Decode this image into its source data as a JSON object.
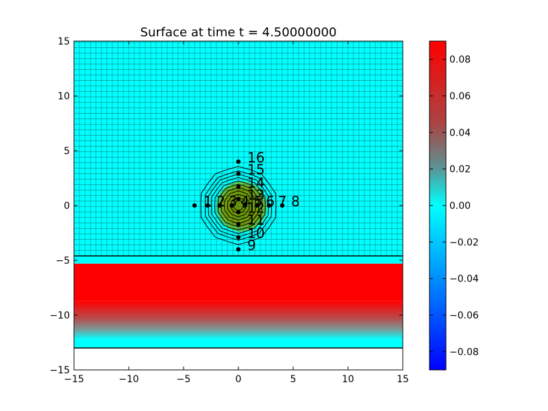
{
  "chart_data": {
    "type": "heatmap",
    "title": "Surface at time t =     4.50000000",
    "xlim": [
      -15,
      15
    ],
    "ylim": [
      -15,
      15
    ],
    "x_ticks": [
      "−15",
      "−10",
      "−5",
      "0",
      "5",
      "10",
      "15"
    ],
    "y_ticks": [
      "15",
      "10",
      "5",
      "0",
      "−5",
      "−10",
      "−15"
    ],
    "x_tick_values": [
      -15,
      -10,
      -5,
      0,
      5,
      10,
      15
    ],
    "y_tick_values": [
      15,
      10,
      5,
      0,
      -5,
      -10,
      -15
    ],
    "grid": true,
    "grid_step": 0.5,
    "colorbar": {
      "ticks": [
        "0.08",
        "0.06",
        "0.04",
        "0.02",
        "0.00",
        "−0.02",
        "−0.04",
        "−0.06",
        "−0.08"
      ],
      "tick_values": [
        0.08,
        0.06,
        0.04,
        0.02,
        0.0,
        -0.02,
        -0.04,
        -0.06,
        -0.08
      ],
      "range": [
        -0.09,
        0.09
      ],
      "colors": {
        "low": "#0000ff",
        "zero": "#00ffff",
        "mid": "#8a8a8a",
        "high": "#ff0000"
      }
    },
    "regions": {
      "band_top_y": -4.6,
      "band_bottom_y": -13.0,
      "red_top_y": -5.3,
      "red_bottom_y": -8.7,
      "fade_bottom_y": -12.2,
      "hump_center": [
        0.3,
        -0.1
      ],
      "hump_radius": 2.3
    },
    "contours": {
      "center": [
        0,
        0
      ],
      "radii": [
        3.5,
        3.1,
        2.8,
        2.5,
        2.2,
        1.9,
        1.6,
        1.3,
        1.0,
        0.7,
        0.45
      ]
    },
    "gauges": [
      {
        "label": "1",
        "x": -4.0,
        "y": 0.0
      },
      {
        "label": "2",
        "x": -2.8,
        "y": 0.0
      },
      {
        "label": "3",
        "x": -1.7,
        "y": 0.0
      },
      {
        "label": "4",
        "x": -0.6,
        "y": 0.0
      },
      {
        "label": "5",
        "x": 0.6,
        "y": 0.0
      },
      {
        "label": "6",
        "x": 1.7,
        "y": 0.0
      },
      {
        "label": "7",
        "x": 2.8,
        "y": 0.0
      },
      {
        "label": "8",
        "x": 4.0,
        "y": 0.0
      },
      {
        "label": "9",
        "x": 0.0,
        "y": -4.0
      },
      {
        "label": "10",
        "x": 0.0,
        "y": -2.9
      },
      {
        "label": "11",
        "x": 0.0,
        "y": -1.7
      },
      {
        "label": "12",
        "x": 0.0,
        "y": -0.6
      },
      {
        "label": "13",
        "x": 0.0,
        "y": 0.6
      },
      {
        "label": "14",
        "x": 0.0,
        "y": 1.7
      },
      {
        "label": "15",
        "x": 0.0,
        "y": 2.9
      },
      {
        "label": "16",
        "x": 0.0,
        "y": 4.0
      }
    ]
  }
}
